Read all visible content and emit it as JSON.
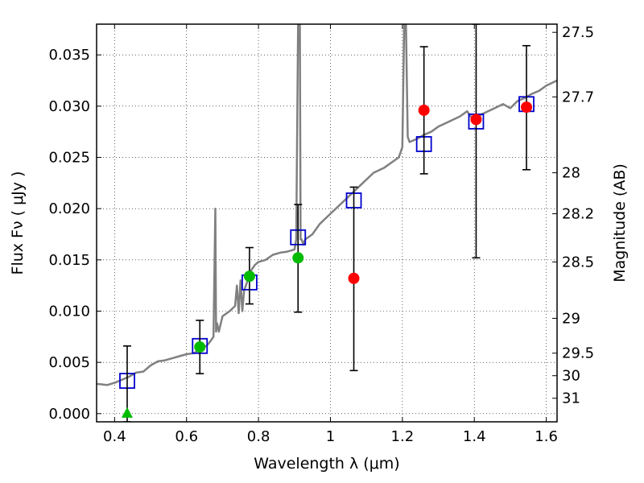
{
  "chart_data": {
    "type": "scatter",
    "xlabel": "Wavelength  λ (μm)",
    "ylabel": "Flux  Fν  ( μJy )",
    "y2label": "Magnitude (AB)",
    "xlim": [
      0.35,
      1.63
    ],
    "ylim": [
      -0.0008,
      0.038
    ],
    "grid": true,
    "x_ticks": [
      0.4,
      0.6,
      0.8,
      1.0,
      1.2,
      1.4,
      1.6
    ],
    "x_tick_labels": [
      "0.4",
      "0.6",
      "0.8",
      "1",
      "1.2",
      "1.4",
      "1.6"
    ],
    "y_ticks": [
      0.0,
      0.005,
      0.01,
      0.015,
      0.02,
      0.025,
      0.03,
      0.035
    ],
    "y_tick_labels": [
      "0.000",
      "0.005",
      "0.010",
      "0.015",
      "0.020",
      "0.025",
      "0.030",
      "0.035"
    ],
    "y2_ticks": [
      {
        "flux": 0.0372,
        "label": "27.5"
      },
      {
        "flux": 0.0309,
        "label": "27.7"
      },
      {
        "flux": 0.0235,
        "label": "28"
      },
      {
        "flux": 0.0195,
        "label": "28.2"
      },
      {
        "flux": 0.0148,
        "label": "28.5"
      },
      {
        "flux": 0.0093,
        "label": "29"
      },
      {
        "flux": 0.0059,
        "label": "29.5"
      },
      {
        "flux": 0.0037,
        "label": "30"
      },
      {
        "flux": 0.0015,
        "label": "31"
      }
    ],
    "series": [
      {
        "type": "line",
        "color": "#808080",
        "x": [
          0.35,
          0.38,
          0.4,
          0.42,
          0.44,
          0.46,
          0.48,
          0.5,
          0.52,
          0.54,
          0.56,
          0.58,
          0.6,
          0.62,
          0.64,
          0.655,
          0.665,
          0.675,
          0.68,
          0.682,
          0.685,
          0.69,
          0.7,
          0.72,
          0.735,
          0.74,
          0.745,
          0.75,
          0.755,
          0.76,
          0.77,
          0.78,
          0.79,
          0.8,
          0.82,
          0.84,
          0.86,
          0.88,
          0.9,
          0.905,
          0.91,
          0.913,
          0.915,
          0.917,
          0.92,
          0.925,
          0.93,
          0.95,
          0.97,
          1.0,
          1.03,
          1.06,
          1.09,
          1.12,
          1.15,
          1.17,
          1.19,
          1.2,
          1.205,
          1.21,
          1.215,
          1.22,
          1.24,
          1.26,
          1.28,
          1.3,
          1.33,
          1.36,
          1.38,
          1.4,
          1.42,
          1.45,
          1.48,
          1.5,
          1.52,
          1.54,
          1.56,
          1.58,
          1.6,
          1.63
        ],
        "y": [
          0.0029,
          0.0028,
          0.003,
          0.0033,
          0.0036,
          0.004,
          0.0041,
          0.0047,
          0.0051,
          0.0052,
          0.0054,
          0.0056,
          0.0058,
          0.0059,
          0.0063,
          0.0066,
          0.007,
          0.0075,
          0.02,
          0.008,
          0.0088,
          0.008,
          0.0095,
          0.01,
          0.0105,
          0.0125,
          0.0098,
          0.013,
          0.01,
          0.012,
          0.013,
          0.014,
          0.0145,
          0.0148,
          0.015,
          0.0155,
          0.0157,
          0.0158,
          0.016,
          0.017,
          0.038,
          0.038,
          0.038,
          0.017,
          0.017,
          0.0165,
          0.017,
          0.0175,
          0.0185,
          0.0195,
          0.0205,
          0.0215,
          0.0225,
          0.0235,
          0.024,
          0.0245,
          0.025,
          0.026,
          0.038,
          0.038,
          0.027,
          0.0265,
          0.0268,
          0.0272,
          0.0275,
          0.028,
          0.0285,
          0.029,
          0.0295,
          0.0285,
          0.0292,
          0.0297,
          0.0302,
          0.0298,
          0.0305,
          0.0308,
          0.0312,
          0.0315,
          0.032,
          0.0325
        ]
      },
      {
        "type": "model_squares",
        "color": "#0000cc",
        "x": [
          0.435,
          0.637,
          0.775,
          0.91,
          1.065,
          1.26,
          1.405,
          1.545
        ],
        "y": [
          0.0032,
          0.0066,
          0.0128,
          0.0172,
          0.0208,
          0.0263,
          0.0285,
          0.0302
        ]
      },
      {
        "type": "errorbars",
        "color": "#000000",
        "x": [
          0.435,
          0.637,
          0.775,
          0.91,
          1.065,
          1.26,
          1.405,
          1.545
        ],
        "ylow": [
          -0.0008,
          0.0039,
          0.0107,
          0.0099,
          0.0042,
          0.0234,
          0.0152,
          0.0238
        ],
        "yhigh": [
          0.0066,
          0.0091,
          0.0162,
          0.0204,
          0.0221,
          0.0358,
          0.038,
          0.0359
        ]
      },
      {
        "type": "observed",
        "color": "#00bb00",
        "marker": "circle",
        "x": [
          0.637,
          0.775,
          0.91
        ],
        "y": [
          0.0065,
          0.0134,
          0.0152
        ]
      },
      {
        "type": "upper_limit",
        "color": "#00bb00",
        "marker": "triangle",
        "x": [
          0.435
        ],
        "y": [
          0.0
        ]
      },
      {
        "type": "observed",
        "color": "#ff0000",
        "marker": "circle",
        "x": [
          1.065,
          1.26,
          1.405,
          1.545
        ],
        "y": [
          0.0132,
          0.0296,
          0.0287,
          0.0299
        ]
      }
    ]
  }
}
